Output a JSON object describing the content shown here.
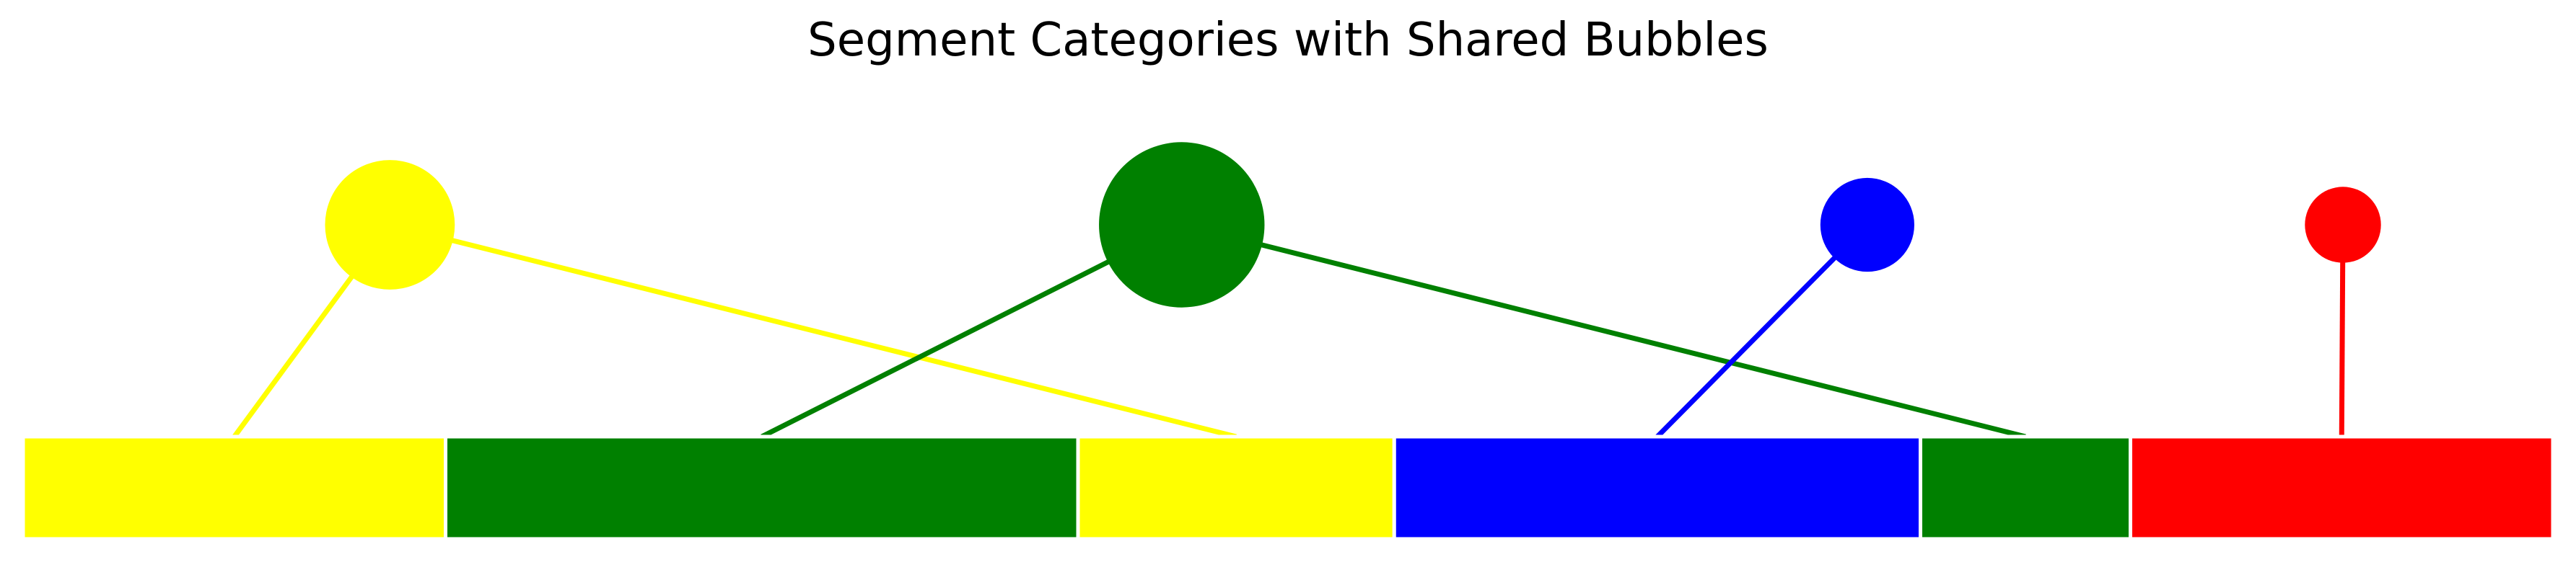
{
  "chart_data": {
    "type": "bar",
    "title": "Segment Categories with Shared Bubbles",
    "xlim": [
      0,
      100
    ],
    "segments": [
      {
        "category": "yellow",
        "start": 0,
        "end": 16.7
      },
      {
        "category": "green",
        "start": 16.7,
        "end": 41.7
      },
      {
        "category": "yellow",
        "start": 41.7,
        "end": 54.2
      },
      {
        "category": "blue",
        "start": 54.2,
        "end": 75.0
      },
      {
        "category": "green",
        "start": 75.0,
        "end": 83.3
      },
      {
        "category": "red",
        "start": 83.3,
        "end": 100
      }
    ],
    "bubbles": [
      {
        "category": "yellow",
        "x": 14.5,
        "size": 29
      },
      {
        "category": "green",
        "x": 45.8,
        "size": 37
      },
      {
        "category": "blue",
        "x": 72.9,
        "size": 21
      },
      {
        "category": "red",
        "x": 91.7,
        "size": 17
      }
    ],
    "colors": {
      "yellow": "#ffff00",
      "green": "#008000",
      "blue": "#0000ff",
      "red": "#ff0000"
    },
    "grid": false,
    "axes_visible": false
  }
}
